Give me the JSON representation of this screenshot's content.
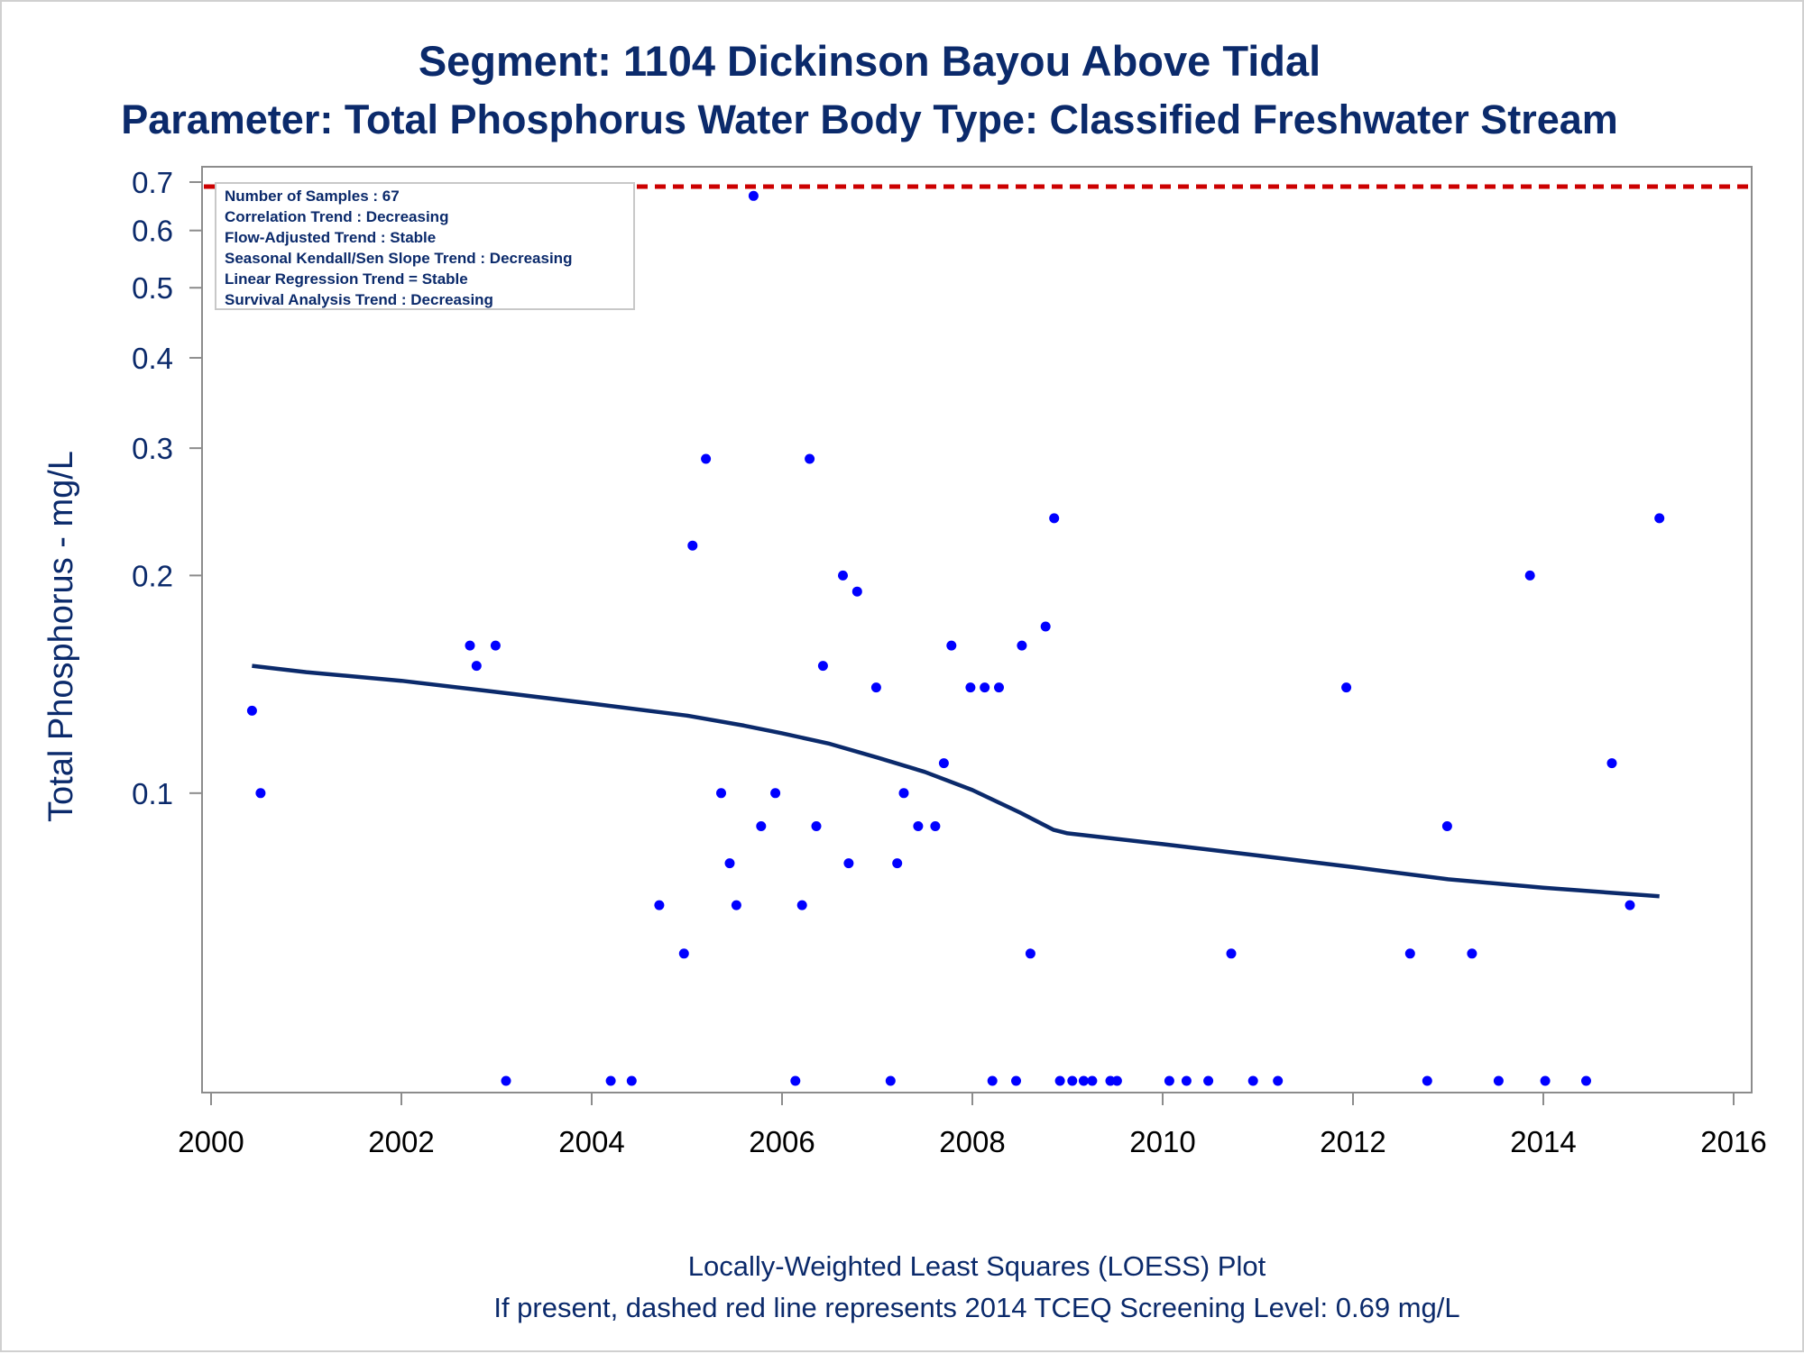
{
  "chart_data": {
    "type": "scatter",
    "title": "Segment: 1104  Dickinson Bayou Above Tidal",
    "subtitle": "Parameter: Total Phosphorus   Water Body Type: Classified Freshwater Stream",
    "ylabel": "Total Phosphorus - mg/L",
    "xlabel": "",
    "y_scale": "log",
    "xlim": [
      2000,
      2016
    ],
    "ylim": [
      0.04,
      0.72
    ],
    "x_ticks": [
      "2000",
      "2002",
      "2004",
      "2006",
      "2008",
      "2010",
      "2012",
      "2014",
      "2016"
    ],
    "y_ticks": [
      "0.7",
      "0.6",
      "0.5",
      "0.4",
      "0.3",
      "0.2",
      "0.1"
    ],
    "legend": {
      "placement": "top-left",
      "lines": [
        "Number of Samples : 67",
        "Correlation Trend : Decreasing",
        "Flow-Adjusted Trend : Stable",
        "Seasonal Kendall/Sen Slope Trend : Decreasing",
        "Linear Regression Trend = Stable",
        "Survival Analysis Trend : Decreasing"
      ]
    },
    "screening_level": {
      "value": 0.69,
      "style": "dashed",
      "color": "#cc0000"
    },
    "footer": [
      "Locally-Weighted Least Squares (LOESS) Plot",
      "If present, dashed red line represents 2014 TCEQ Screening Level: 0.69 mg/L"
    ],
    "colors": {
      "points": "#0000ff",
      "loess": "#0b2a6b",
      "text": "#0b2a6b",
      "frame": "#8c8c8c"
    },
    "series": [
      {
        "kind": "points",
        "points": [
          [
            2000.43,
            0.13
          ],
          [
            2000.52,
            0.1
          ],
          [
            2002.72,
            0.16
          ],
          [
            2002.79,
            0.15
          ],
          [
            2002.99,
            0.16
          ],
          [
            2003.1,
            0.04
          ],
          [
            2004.2,
            0.04
          ],
          [
            2004.42,
            0.04
          ],
          [
            2004.71,
            0.07
          ],
          [
            2004.97,
            0.06
          ],
          [
            2005.06,
            0.22
          ],
          [
            2005.2,
            0.29
          ],
          [
            2005.36,
            0.1
          ],
          [
            2005.45,
            0.08
          ],
          [
            2005.52,
            0.07
          ],
          [
            2005.7,
            0.67
          ],
          [
            2005.78,
            0.09
          ],
          [
            2005.93,
            0.1
          ],
          [
            2006.14,
            0.04
          ],
          [
            2006.21,
            0.07
          ],
          [
            2006.29,
            0.29
          ],
          [
            2006.36,
            0.09
          ],
          [
            2006.43,
            0.15
          ],
          [
            2006.64,
            0.2
          ],
          [
            2006.7,
            0.08
          ],
          [
            2006.79,
            0.19
          ],
          [
            2006.99,
            0.14
          ],
          [
            2007.14,
            0.04
          ],
          [
            2007.21,
            0.08
          ],
          [
            2007.28,
            0.1
          ],
          [
            2007.43,
            0.09
          ],
          [
            2007.61,
            0.09
          ],
          [
            2007.7,
            0.11
          ],
          [
            2007.78,
            0.16
          ],
          [
            2007.98,
            0.14
          ],
          [
            2008.13,
            0.14
          ],
          [
            2008.21,
            0.04
          ],
          [
            2008.28,
            0.14
          ],
          [
            2008.46,
            0.04
          ],
          [
            2008.52,
            0.16
          ],
          [
            2008.61,
            0.06
          ],
          [
            2008.77,
            0.17
          ],
          [
            2008.86,
            0.24
          ],
          [
            2008.92,
            0.04
          ],
          [
            2009.05,
            0.04
          ],
          [
            2009.17,
            0.04
          ],
          [
            2009.26,
            0.04
          ],
          [
            2009.45,
            0.04
          ],
          [
            2009.52,
            0.04
          ],
          [
            2010.07,
            0.04
          ],
          [
            2010.25,
            0.04
          ],
          [
            2010.48,
            0.04
          ],
          [
            2010.72,
            0.06
          ],
          [
            2010.95,
            0.04
          ],
          [
            2011.21,
            0.04
          ],
          [
            2011.93,
            0.14
          ],
          [
            2012.6,
            0.06
          ],
          [
            2012.78,
            0.04
          ],
          [
            2012.99,
            0.09
          ],
          [
            2013.25,
            0.06
          ],
          [
            2013.53,
            0.04
          ],
          [
            2013.86,
            0.2
          ],
          [
            2014.02,
            0.04
          ],
          [
            2014.45,
            0.04
          ],
          [
            2014.72,
            0.11
          ],
          [
            2014.91,
            0.07
          ],
          [
            2015.22,
            0.24
          ]
        ]
      },
      {
        "kind": "loess",
        "points": [
          [
            2000.43,
            0.15
          ],
          [
            2001.0,
            0.147
          ],
          [
            2002.0,
            0.143
          ],
          [
            2003.0,
            0.138
          ],
          [
            2004.0,
            0.133
          ],
          [
            2005.0,
            0.128
          ],
          [
            2005.6,
            0.124
          ],
          [
            2006.0,
            0.121
          ],
          [
            2006.5,
            0.117
          ],
          [
            2007.0,
            0.112
          ],
          [
            2007.5,
            0.107
          ],
          [
            2008.0,
            0.101
          ],
          [
            2008.5,
            0.094
          ],
          [
            2008.85,
            0.089
          ],
          [
            2009.0,
            0.088
          ],
          [
            2010.0,
            0.085
          ],
          [
            2011.0,
            0.082
          ],
          [
            2012.0,
            0.079
          ],
          [
            2013.0,
            0.076
          ],
          [
            2014.0,
            0.074
          ],
          [
            2015.22,
            0.072
          ]
        ]
      }
    ]
  }
}
